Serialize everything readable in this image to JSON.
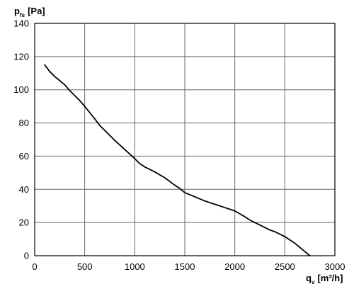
{
  "chart_data": {
    "type": "line",
    "xlabel": "q",
    "xlabel_sub": "v",
    "xlabel_unit": "[m³/h]",
    "ylabel": "p",
    "ylabel_sub": "fs",
    "ylabel_unit": "[Pa]",
    "xlim": [
      0,
      3000
    ],
    "ylim": [
      0,
      140
    ],
    "xticks": [
      0,
      500,
      1000,
      1500,
      2000,
      2500,
      3000
    ],
    "yticks": [
      0,
      20,
      40,
      60,
      80,
      100,
      120,
      140
    ],
    "grid": true,
    "series": [
      {
        "x": [
          100,
          150,
          200,
          250,
          300,
          350,
          400,
          450,
          500,
          600,
          650,
          700,
          800,
          900,
          1000,
          1050,
          1100,
          1200,
          1300,
          1400,
          1450,
          1500,
          1600,
          1700,
          1800,
          1900,
          2000,
          2100,
          2150,
          2200,
          2300,
          2350,
          2400,
          2450,
          2500,
          2550,
          2600,
          2650,
          2700,
          2750
        ],
        "y": [
          115,
          111,
          108,
          105.5,
          103,
          99.5,
          96.5,
          93.5,
          90,
          82.5,
          78.5,
          75.5,
          69.5,
          64,
          58.5,
          55.5,
          53.5,
          50.5,
          47,
          42.5,
          40.5,
          38,
          35.5,
          33,
          31,
          29,
          27,
          23.5,
          21.5,
          20,
          17,
          15.5,
          14.5,
          13,
          11.5,
          9.5,
          7.5,
          5,
          2.5,
          0
        ]
      }
    ],
    "color": "#000000",
    "grid_color": "#666666"
  }
}
